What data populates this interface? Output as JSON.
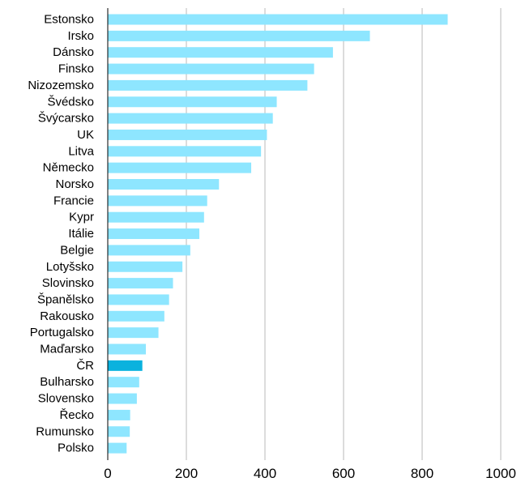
{
  "chart_data": {
    "type": "bar",
    "orientation": "horizontal",
    "title": "",
    "xlabel": "",
    "ylabel": "",
    "categories": [
      "Estonsko",
      "Irsko",
      "Dánsko",
      "Finsko",
      "Nizozemsko",
      "Švédsko",
      "Švýcarsko",
      "UK",
      "Litva",
      "Německo",
      "Norsko",
      "Francie",
      "Kypr",
      "Itálie",
      "Belgie",
      "Lotyšsko",
      "Slovinsko",
      "Španělsko",
      "Rakousko",
      "Portugalsko",
      "Maďarsko",
      "ČR",
      "Bulharsko",
      "Slovensko",
      "Řecko",
      "Rumunsko",
      "Polsko"
    ],
    "values": [
      865,
      667,
      573,
      525,
      508,
      430,
      420,
      405,
      390,
      365,
      283,
      253,
      245,
      233,
      210,
      190,
      166,
      156,
      144,
      129,
      97,
      88,
      80,
      74,
      57,
      56,
      48
    ],
    "highlight_category": "ČR",
    "xlim": [
      0,
      1000
    ],
    "xticks": [
      0,
      200,
      400,
      600,
      800,
      1000
    ],
    "xtick_labels": [
      "0",
      "200",
      "400",
      "600",
      "800",
      "1000"
    ],
    "grid": "vertical",
    "legend": "none",
    "colors": {
      "bar": "#8ee6ff",
      "highlight": "#0ab2de",
      "grid": "#d0d0d0",
      "axis": "#000000"
    }
  }
}
